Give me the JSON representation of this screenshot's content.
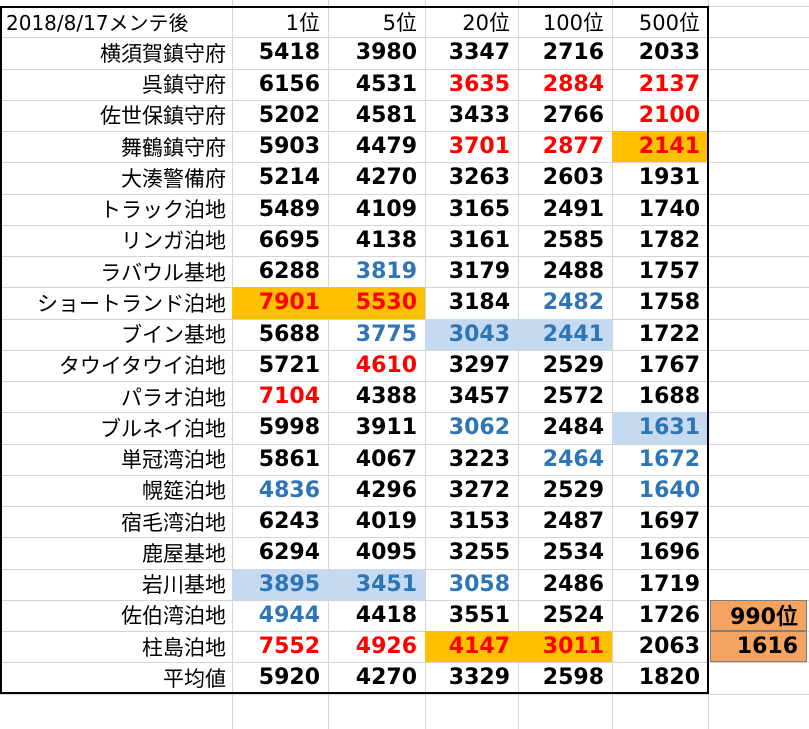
{
  "headers": [
    "2018/8/17メンテ後",
    "1位",
    "5位",
    "20位",
    "100位",
    "500位"
  ],
  "rows": [
    {
      "name": "横須賀鎮守府",
      "values": [
        "5418",
        "3980",
        "3347",
        "2716",
        "2033"
      ],
      "colors": [
        "k",
        "k",
        "k",
        "k",
        "k"
      ],
      "fills": [
        "",
        "",
        "",
        "",
        ""
      ]
    },
    {
      "name": "呉鎮守府",
      "values": [
        "6156",
        "4531",
        "3635",
        "2884",
        "2137"
      ],
      "colors": [
        "k",
        "k",
        "r",
        "r",
        "r"
      ],
      "fills": [
        "",
        "",
        "",
        "",
        ""
      ]
    },
    {
      "name": "佐世保鎮守府",
      "values": [
        "5202",
        "4581",
        "3433",
        "2766",
        "2100"
      ],
      "colors": [
        "k",
        "k",
        "k",
        "k",
        "r"
      ],
      "fills": [
        "",
        "",
        "",
        "",
        ""
      ]
    },
    {
      "name": "舞鶴鎮守府",
      "values": [
        "5903",
        "4479",
        "3701",
        "2877",
        "2141"
      ],
      "colors": [
        "k",
        "k",
        "r",
        "r",
        "r"
      ],
      "fills": [
        "",
        "",
        "",
        "",
        "o"
      ]
    },
    {
      "name": "大湊警備府",
      "values": [
        "5214",
        "4270",
        "3263",
        "2603",
        "1931"
      ],
      "colors": [
        "k",
        "k",
        "k",
        "k",
        "k"
      ],
      "fills": [
        "",
        "",
        "",
        "",
        ""
      ]
    },
    {
      "name": "トラック泊地",
      "values": [
        "5489",
        "4109",
        "3165",
        "2491",
        "1740"
      ],
      "colors": [
        "k",
        "k",
        "k",
        "k",
        "k"
      ],
      "fills": [
        "",
        "",
        "",
        "",
        ""
      ]
    },
    {
      "name": "リンガ泊地",
      "values": [
        "6695",
        "4138",
        "3161",
        "2585",
        "1782"
      ],
      "colors": [
        "k",
        "k",
        "k",
        "k",
        "k"
      ],
      "fills": [
        "",
        "",
        "",
        "",
        ""
      ]
    },
    {
      "name": "ラバウル基地",
      "values": [
        "6288",
        "3819",
        "3179",
        "2488",
        "1757"
      ],
      "colors": [
        "k",
        "b",
        "k",
        "k",
        "k"
      ],
      "fills": [
        "",
        "",
        "",
        "",
        ""
      ]
    },
    {
      "name": "ショートランド泊地",
      "values": [
        "7901",
        "5530",
        "3184",
        "2482",
        "1758"
      ],
      "colors": [
        "r",
        "r",
        "k",
        "b",
        "k"
      ],
      "fills": [
        "o",
        "o",
        "",
        "",
        ""
      ]
    },
    {
      "name": "ブイン基地",
      "values": [
        "5688",
        "3775",
        "3043",
        "2441",
        "1722"
      ],
      "colors": [
        "k",
        "b",
        "b",
        "b",
        "k"
      ],
      "fills": [
        "",
        "",
        "l",
        "l",
        ""
      ]
    },
    {
      "name": "タウイタウイ泊地",
      "values": [
        "5721",
        "4610",
        "3297",
        "2529",
        "1767"
      ],
      "colors": [
        "k",
        "r",
        "k",
        "k",
        "k"
      ],
      "fills": [
        "",
        "",
        "",
        "",
        ""
      ]
    },
    {
      "name": "パラオ泊地",
      "values": [
        "7104",
        "4388",
        "3457",
        "2572",
        "1688"
      ],
      "colors": [
        "r",
        "k",
        "k",
        "k",
        "k"
      ],
      "fills": [
        "",
        "",
        "",
        "",
        ""
      ]
    },
    {
      "name": "ブルネイ泊地",
      "values": [
        "5998",
        "3911",
        "3062",
        "2484",
        "1631"
      ],
      "colors": [
        "k",
        "k",
        "b",
        "k",
        "b"
      ],
      "fills": [
        "",
        "",
        "",
        "",
        "l"
      ]
    },
    {
      "name": "単冠湾泊地",
      "values": [
        "5861",
        "4067",
        "3223",
        "2464",
        "1672"
      ],
      "colors": [
        "k",
        "k",
        "k",
        "b",
        "b"
      ],
      "fills": [
        "",
        "",
        "",
        "",
        ""
      ]
    },
    {
      "name": "幌筵泊地",
      "values": [
        "4836",
        "4296",
        "3272",
        "2529",
        "1640"
      ],
      "colors": [
        "b",
        "k",
        "k",
        "k",
        "b"
      ],
      "fills": [
        "",
        "",
        "",
        "",
        ""
      ]
    },
    {
      "name": "宿毛湾泊地",
      "values": [
        "6243",
        "4019",
        "3153",
        "2487",
        "1697"
      ],
      "colors": [
        "k",
        "k",
        "k",
        "k",
        "k"
      ],
      "fills": [
        "",
        "",
        "",
        "",
        ""
      ]
    },
    {
      "name": "鹿屋基地",
      "values": [
        "6294",
        "4095",
        "3255",
        "2534",
        "1696"
      ],
      "colors": [
        "k",
        "k",
        "k",
        "k",
        "k"
      ],
      "fills": [
        "",
        "",
        "",
        "",
        ""
      ]
    },
    {
      "name": "岩川基地",
      "values": [
        "3895",
        "3451",
        "3058",
        "2486",
        "1719"
      ],
      "colors": [
        "b",
        "b",
        "b",
        "k",
        "k"
      ],
      "fills": [
        "l",
        "l",
        "",
        "",
        ""
      ]
    },
    {
      "name": "佐伯湾泊地",
      "values": [
        "4944",
        "4418",
        "3551",
        "2524",
        "1726"
      ],
      "colors": [
        "b",
        "k",
        "k",
        "k",
        "k"
      ],
      "fills": [
        "",
        "",
        "",
        "",
        ""
      ]
    },
    {
      "name": "柱島泊地",
      "values": [
        "7552",
        "4926",
        "4147",
        "3011",
        "2063"
      ],
      "colors": [
        "r",
        "r",
        "r",
        "r",
        "k"
      ],
      "fills": [
        "",
        "",
        "o",
        "o",
        ""
      ]
    },
    {
      "name": "平均値",
      "values": [
        "5920",
        "4270",
        "3329",
        "2598",
        "1820"
      ],
      "colors": [
        "k",
        "k",
        "k",
        "k",
        "k"
      ],
      "fills": [
        "",
        "",
        "",
        "",
        ""
      ]
    }
  ],
  "side_cells": {
    "label": "990位",
    "value": "1616"
  },
  "colors": {
    "red": "#ff0000",
    "blue": "#2e75b6",
    "orange": "#ffc000",
    "light_blue": "#c5d9f1",
    "peach": "#f4a460",
    "grid": "#d4d4d4"
  }
}
